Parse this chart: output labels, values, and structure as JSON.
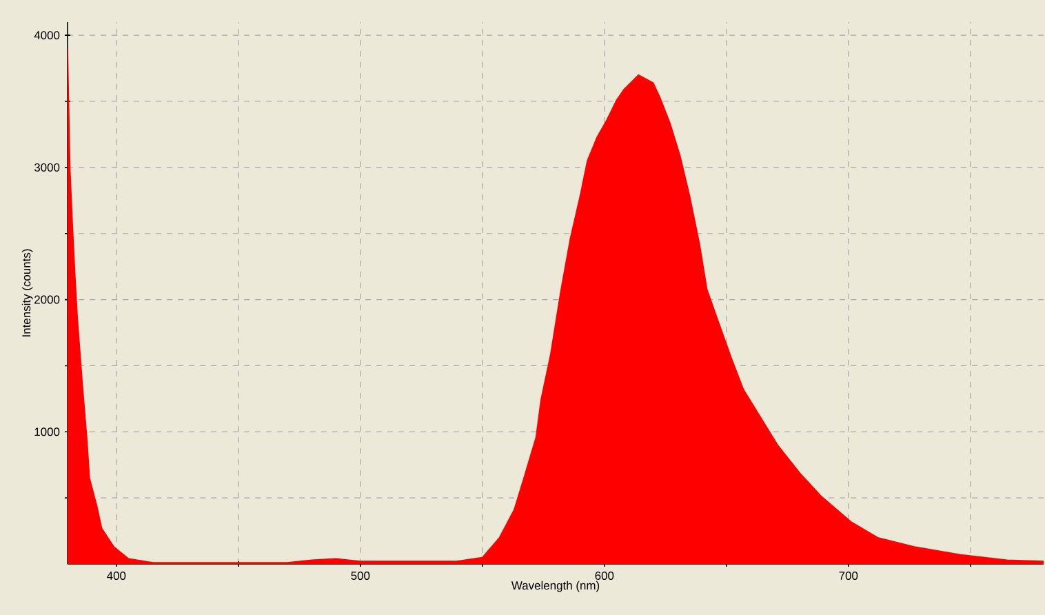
{
  "chart_data": {
    "type": "area",
    "xlabel": "Wavelength (nm)",
    "ylabel": "Intensity (counts)",
    "x": [
      380,
      381,
      382,
      383,
      384,
      386,
      388,
      389,
      392,
      394,
      399,
      405,
      415,
      440,
      470,
      480,
      490,
      500,
      520,
      539,
      550,
      557,
      563,
      567,
      572,
      574,
      578,
      582,
      586,
      590,
      593,
      597,
      601,
      605,
      608,
      614,
      620,
      623,
      627,
      631,
      635,
      639,
      642,
      646,
      652,
      657,
      663,
      671,
      680,
      689,
      701,
      712,
      727,
      746,
      765,
      780
    ],
    "series": [
      {
        "color": "#ff0000",
        "values": [
          3900,
          2990,
          2570,
          2200,
          1870,
          1380,
          930,
          650,
          440,
          270,
          130,
          40,
          10,
          10,
          10,
          30,
          40,
          20,
          20,
          20,
          50,
          200,
          410,
          650,
          960,
          1240,
          1590,
          2050,
          2460,
          2780,
          3050,
          3230,
          3360,
          3510,
          3590,
          3700,
          3640,
          3520,
          3330,
          3090,
          2780,
          2420,
          2080,
          1870,
          1560,
          1320,
          1140,
          900,
          690,
          510,
          320,
          200,
          130,
          70,
          30,
          20
        ]
      }
    ],
    "xlim": [
      380,
      780
    ],
    "ylim": [
      0,
      4100
    ],
    "xticks": [
      400,
      {
        "value": 450,
        "label": null
      },
      500,
      {
        "value": 550,
        "label": null
      },
      600,
      {
        "value": 650,
        "label": null
      },
      700,
      {
        "value": 750,
        "label": null
      }
    ],
    "yticks": [
      {
        "value": 500,
        "label": null
      },
      1000,
      {
        "value": 1500,
        "label": null
      },
      2000,
      {
        "value": 2500,
        "label": null
      },
      3000,
      {
        "value": 3500,
        "label": null
      },
      4000
    ],
    "grid": true
  }
}
